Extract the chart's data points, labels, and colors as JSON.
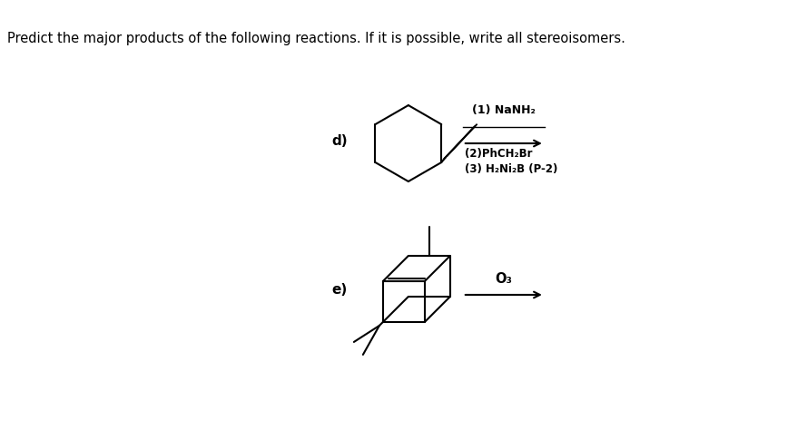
{
  "title": "Predict the major products of the following reactions. If it is possible, write all stereoisomers.",
  "bg_color": "#ffffff",
  "label_d": "d)",
  "label_e": "e)",
  "reagents_d_line1": "(1) NaNH₂",
  "reagents_d_line2": "(2)PhCH₂Br",
  "reagents_d_line3": "(3) H₂Ni₂B (P-2)",
  "reagent_e": "O₃"
}
